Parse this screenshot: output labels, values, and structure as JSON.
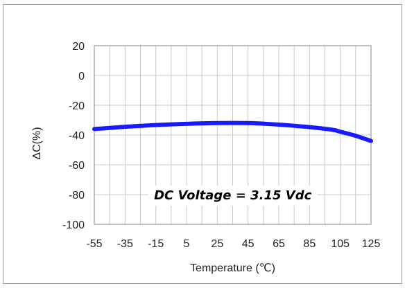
{
  "chart_data": {
    "type": "line",
    "title": "",
    "xlabel": "Temperature (℃)",
    "ylabel": "ΔC(%)",
    "x": [
      -55,
      -35,
      -15,
      5,
      25,
      45,
      65,
      85,
      100,
      105,
      115,
      125
    ],
    "series": [
      {
        "values": [
          -36,
          -34.5,
          -33.3,
          -32.5,
          -32,
          -32,
          -33,
          -34.7,
          -36.5,
          -37.8,
          -40.5,
          -44
        ],
        "color": "#1a1aff"
      }
    ],
    "xticks": [
      "-55",
      "-35",
      "-15",
      "5",
      "25",
      "45",
      "65",
      "85",
      "105",
      "125"
    ],
    "xtick_values": [
      -55,
      -35,
      -15,
      5,
      25,
      45,
      65,
      85,
      105,
      125
    ],
    "yticks": [
      "20",
      "0",
      "-20",
      "-40",
      "-60",
      "-80",
      "-100"
    ],
    "ytick_values": [
      20,
      0,
      -20,
      -40,
      -60,
      -80,
      -100
    ],
    "xlim": [
      -55,
      125
    ],
    "ylim": [
      -100,
      20
    ],
    "grid": true,
    "annotation": "DC Voltage = 3.15 Vdc",
    "annotation_at": {
      "x": 45,
      "y": -80
    }
  },
  "colors": {
    "line": "#1a1aff",
    "grid": "#c8c8c8",
    "axis": "#9a9a9a",
    "frame": "#9a9a9a"
  }
}
